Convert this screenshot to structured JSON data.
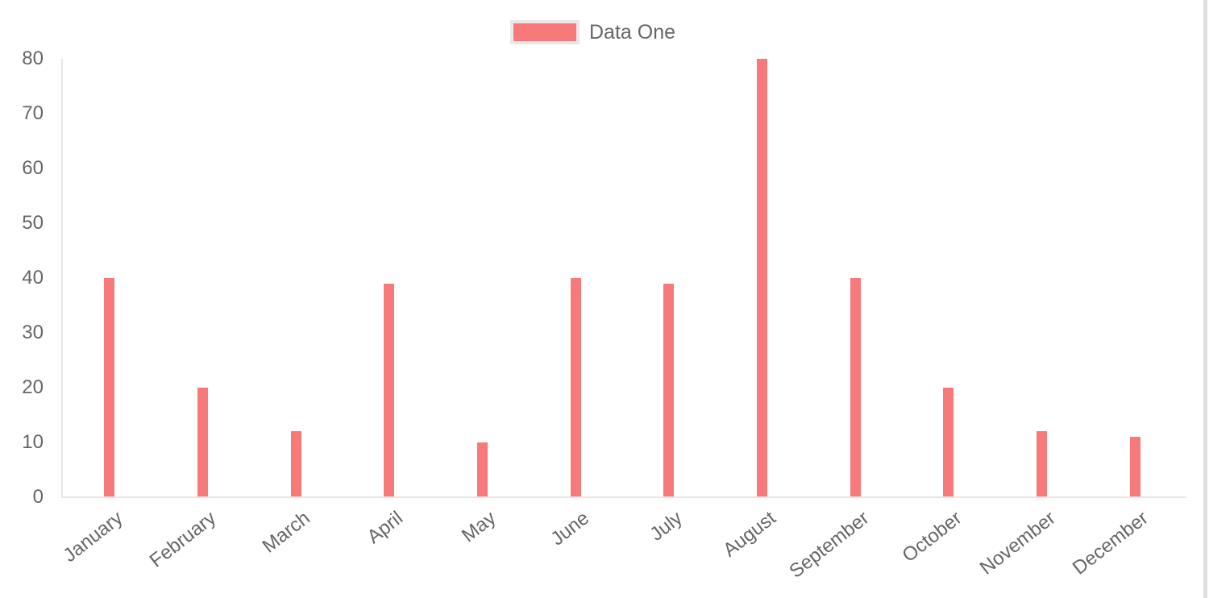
{
  "page": {
    "background": "#ffffff"
  },
  "legend": {
    "items": [
      {
        "label": "Data One",
        "color": "#f87979"
      }
    ]
  },
  "chart_data": {
    "type": "bar",
    "title": "",
    "categories": [
      "January",
      "February",
      "March",
      "April",
      "May",
      "June",
      "July",
      "August",
      "September",
      "October",
      "November",
      "December"
    ],
    "series": [
      {
        "name": "Data One",
        "color": "#f87979",
        "values": [
          40,
          20,
          12,
          39,
          10,
          40,
          39,
          80,
          40,
          20,
          12,
          11
        ]
      }
    ],
    "xlabel": "",
    "ylabel": "",
    "ylim": [
      0,
      80
    ],
    "yticks": [
      0,
      10,
      20,
      30,
      40,
      50,
      60,
      70,
      80
    ],
    "grid": false,
    "legend_position": "top-center",
    "x_tick_rotation_deg": 38,
    "colors": {
      "bar": "#f87979",
      "tick_text": "#666666",
      "axis_line": "#e6e6e6",
      "legend_box_border": "#e8e8e8",
      "page_edge_line": "#e0e0e0"
    }
  }
}
